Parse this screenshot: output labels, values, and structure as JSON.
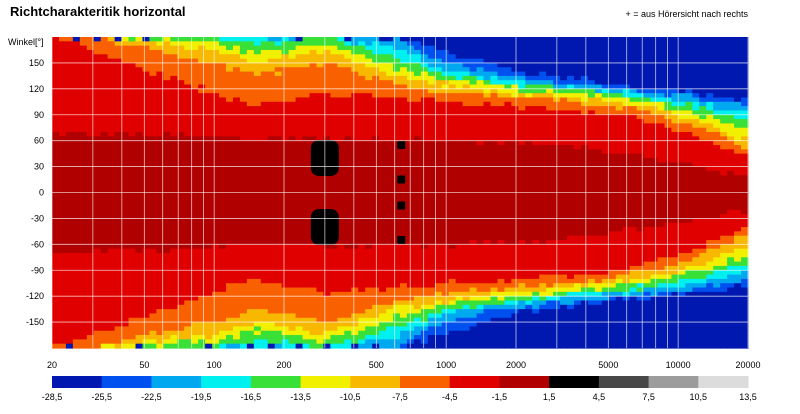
{
  "chart_data": {
    "type": "heatmap",
    "title": "Richtcharakteritik horizontal",
    "note": "+ = aus Hörersicht nach rechts",
    "ylabel": "Winkel[°]",
    "x_scale": "log",
    "xlim": [
      20,
      20000
    ],
    "x_ticks": [
      20,
      50,
      100,
      200,
      500,
      1000,
      2000,
      5000,
      10000,
      20000
    ],
    "ylim": [
      -180,
      180
    ],
    "y_ticks": [
      150,
      120,
      90,
      60,
      30,
      0,
      -30,
      -60,
      -90,
      -120,
      -150
    ],
    "grid": true,
    "colorbar": {
      "labels": [
        "-28,5",
        "-25,5",
        "-22,5",
        "-19,5",
        "-16,5",
        "-13,5",
        "-10,5",
        "-7,5",
        "-4,5",
        "-1,5",
        "1,5",
        "4,5",
        "7,5",
        "10,5",
        "13,5"
      ],
      "colors": [
        "#0018b0",
        "#0050f0",
        "#00a8f0",
        "#00f0f0",
        "#38e038",
        "#f0f000",
        "#f8b800",
        "#f86000",
        "#e00000",
        "#b00000",
        "#000000",
        "#484848",
        "#9c9c9c",
        "#dcdcdc"
      ]
    },
    "regions_description_points": {
      "level_minus1_5_halfwidth_deg_by_freq": {
        "20": 180,
        "100": 115,
        "150": 100,
        "300": 115,
        "600": 110,
        "1000": 105,
        "2000": 100,
        "5000": 92,
        "8000": 80,
        "12000": 65,
        "20000": 40
      },
      "level_minus4_5_halfwidth_deg_by_freq": {
        "20": 180,
        "30": 180,
        "100": 150,
        "150": 135,
        "300": 150,
        "600": 125,
        "1000": 115,
        "2000": 110,
        "5000": 100,
        "8000": 90,
        "12000": 75,
        "20000": 50
      },
      "level_minus7_5_halfwidth_deg_by_freq": {
        "20": 180,
        "30": 180,
        "100": 165,
        "150": 150,
        "300": 165,
        "600": 135,
        "1000": 125,
        "2000": 115,
        "5000": 105,
        "8000": 97,
        "12000": 85,
        "20000": 60
      },
      "level_minus10_5_halfwidth_deg_by_freq": {
        "20": 180,
        "30": 180,
        "100": 172,
        "150": 160,
        "300": 172,
        "600": 145,
        "1000": 130,
        "2000": 120,
        "5000": 110,
        "8000": 102,
        "12000": 92,
        "20000": 72
      },
      "level_minus13_5_halfwidth_deg_by_freq": {
        "20": 180,
        "30": 180,
        "100": 180,
        "150": 170,
        "300": 180,
        "600": 158,
        "1000": 135,
        "2000": 125,
        "5000": 115,
        "8000": 107,
        "12000": 98,
        "20000": 82
      },
      "level_minus16_5_halfwidth_deg_by_freq": {
        "20": 180,
        "100": 180,
        "150": 178,
        "300": 180,
        "600": 168,
        "1000": 140,
        "2000": 128,
        "5000": 118,
        "8000": 112,
        "12000": 104,
        "20000": 92
      },
      "level_minus19_5_halfwidth_deg_by_freq": {
        "20": 180,
        "600": 180,
        "1000": 150,
        "2000": 133,
        "5000": 122,
        "8000": 116,
        "12000": 110,
        "20000": 100
      },
      "level_minus22_5_halfwidth_deg_by_freq": {
        "20": 180,
        "600": 180,
        "1000": 162,
        "2000": 140,
        "5000": 126,
        "8000": 120,
        "12000": 115,
        "20000": 108
      },
      "level_minus25_5_halfwidth_deg_by_freq": {
        "20": 180,
        "900": 180,
        "1000": 175,
        "2000": 150,
        "5000": 132,
        "8000": 126,
        "12000": 120,
        "20000": 115
      },
      "level_1_5_halfwidth_deg_by_freq": {
        "20": 70,
        "100": 65,
        "150": 60,
        "300": 62,
        "1000": 60,
        "3000": 55,
        "8000": 40,
        "20000": 20
      }
    },
    "hot_spots": [
      {
        "freq": 300,
        "angle": 40,
        "level": "4,5"
      },
      {
        "freq": 300,
        "angle": -40,
        "level": "4,5"
      },
      {
        "freq": 640,
        "angle": 55,
        "level": "4,5"
      },
      {
        "freq": 640,
        "angle": 15,
        "level": "4,5"
      },
      {
        "freq": 640,
        "angle": -15,
        "level": "4,5"
      },
      {
        "freq": 640,
        "angle": -55,
        "level": "4,5"
      }
    ]
  }
}
